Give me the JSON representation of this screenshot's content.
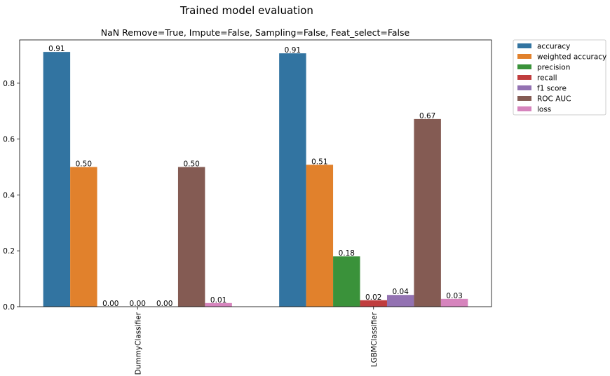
{
  "chart_data": {
    "type": "bar",
    "title": "Trained model evaluation",
    "subtitle": "NaN Remove=True, Impute=False, Sampling=False, Feat_select=False",
    "xlabel": "",
    "ylabel": "",
    "categories": [
      "DummyClassifier",
      "LGBMClassifier"
    ],
    "ylim": [
      0,
      0.955
    ],
    "yticks": [
      0.0,
      0.2,
      0.4,
      0.6,
      0.8
    ],
    "ytick_labels": [
      "0.0",
      "0.2",
      "0.4",
      "0.6",
      "0.8"
    ],
    "grid": false,
    "legend_position": "outside-top-right",
    "series": [
      {
        "name": "accuracy",
        "color": "#3274a1",
        "values": [
          0.912,
          0.907
        ],
        "labels": [
          "0.91",
          "0.91"
        ]
      },
      {
        "name": "weighted accuracy",
        "color": "#e1812c",
        "values": [
          0.5,
          0.508
        ],
        "labels": [
          "0.50",
          "0.51"
        ]
      },
      {
        "name": "precision",
        "color": "#3a923a",
        "values": [
          0.0,
          0.18
        ],
        "labels": [
          "0.00",
          "0.18"
        ]
      },
      {
        "name": "recall",
        "color": "#c03d3e",
        "values": [
          0.0,
          0.023
        ],
        "labels": [
          "0.00",
          "0.02"
        ]
      },
      {
        "name": "f1 score",
        "color": "#9372b2",
        "values": [
          0.0,
          0.042
        ],
        "labels": [
          "0.00",
          "0.04"
        ]
      },
      {
        "name": "ROC AUC",
        "color": "#845b53",
        "values": [
          0.5,
          0.672
        ],
        "labels": [
          "0.50",
          "0.67"
        ]
      },
      {
        "name": "loss",
        "color": "#d684bd",
        "values": [
          0.013,
          0.028
        ],
        "labels": [
          "0.01",
          "0.03"
        ]
      }
    ]
  }
}
